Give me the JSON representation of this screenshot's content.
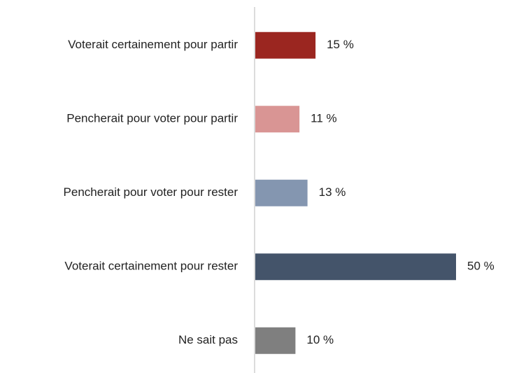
{
  "chart_data": {
    "type": "bar",
    "orientation": "horizontal",
    "categories": [
      "Voterait certainement pour partir",
      "Pencherait pour voter pour partir",
      "Pencherait pour voter pour rester",
      "Voterait certainement pour rester",
      "Ne sait pas"
    ],
    "values": [
      15,
      11,
      13,
      50,
      10
    ],
    "value_labels": [
      "15 %",
      "11 %",
      "13 %",
      "50 %",
      "10 %"
    ],
    "colors": [
      "#9b2620",
      "#d99594",
      "#8496b0",
      "#44546a",
      "#7f7f7f"
    ],
    "grid": false
  }
}
